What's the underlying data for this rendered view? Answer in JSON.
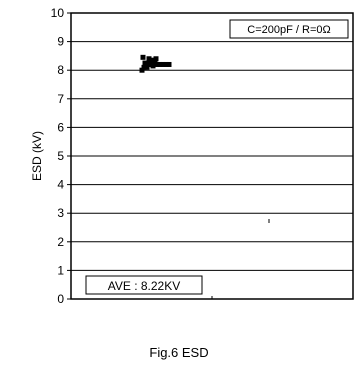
{
  "chart_data": {
    "type": "scatter",
    "title": "",
    "xlabel": "",
    "ylabel": "ESD (kV)",
    "ylim": [
      0,
      10
    ],
    "yticks": [
      0,
      1,
      2,
      3,
      4,
      5,
      6,
      7,
      8,
      9,
      10
    ],
    "grid": "horizontal",
    "legend_text": "C=200pF / R=0Ω",
    "annotation": "AVE : 8.22KV",
    "series": [
      {
        "values": [
          8.0,
          8.1,
          8.15,
          8.2,
          8.25,
          8.3,
          8.35,
          8.4,
          8.45,
          8.1,
          8.2,
          8.3,
          8.4,
          8.25,
          8.15,
          8.2,
          8.2,
          8.2,
          8.2,
          8.2
        ]
      }
    ]
  },
  "caption": "Fig.6 ESD"
}
